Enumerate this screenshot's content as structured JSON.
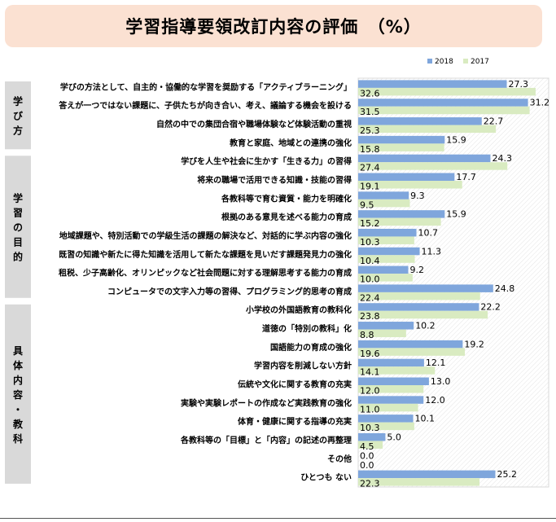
{
  "title": "学習指導要領改訂内容の評価　（%）",
  "chart_data": {
    "type": "bar",
    "orientation": "horizontal",
    "xlim": [
      0,
      35
    ],
    "grid": true,
    "legend_position": "top-right",
    "series": [
      {
        "name": "2018",
        "color": "#7fa6dc",
        "values": [
          27.3,
          31.2,
          22.7,
          15.9,
          24.3,
          17.7,
          9.3,
          15.9,
          10.7,
          11.3,
          9.2,
          24.8,
          22.2,
          10.2,
          19.2,
          12.1,
          13.0,
          12.0,
          10.1,
          5.0,
          0.0,
          25.2
        ]
      },
      {
        "name": "2017",
        "color": "#d9ebc1",
        "values": [
          32.6,
          31.5,
          25.3,
          15.8,
          27.4,
          19.1,
          9.5,
          15.2,
          10.3,
          10.4,
          10.0,
          22.4,
          23.8,
          8.8,
          19.6,
          14.1,
          12.0,
          11.0,
          10.3,
          4.5,
          0.0,
          22.3
        ]
      }
    ],
    "value_labels": [
      [
        "27.3",
        "32.6"
      ],
      [
        "31.2",
        "31.5"
      ],
      [
        "22.7",
        "25.3"
      ],
      [
        "15.9",
        "15.8"
      ],
      [
        "24.3",
        "27.4"
      ],
      [
        "17.7",
        "19.1"
      ],
      [
        "9.3",
        "9.5"
      ],
      [
        "15.9",
        "15.2"
      ],
      [
        "10.7",
        "10.3"
      ],
      [
        "11.3",
        "10.4"
      ],
      [
        "9.2",
        "10.0"
      ],
      [
        "24.8",
        "22.4"
      ],
      [
        "22.2",
        "23.8"
      ],
      [
        "10.2",
        "8.8"
      ],
      [
        "19.2",
        "19.6"
      ],
      [
        "12.1",
        "14.1"
      ],
      [
        "13.0",
        "12.0"
      ],
      [
        "12.0",
        "11.0"
      ],
      [
        "10.1",
        "10.3"
      ],
      [
        "5.0",
        "4.5"
      ],
      [
        "0.0",
        "0.0"
      ],
      [
        "25.2",
        "22.3"
      ]
    ],
    "categories": [
      "学びの方法として、自主的・協働的な学習を奨励する「アクティブラーニング」",
      "答えが一つではない課題に、子供たちが向き合い、考え、議論する機会を設ける",
      "自然の中での集団合宿や職場体験など体験活動の重視",
      "教育と家庭、地域との連携の強化",
      "学びを人生や社会に生かす「生きる力」の習得",
      "将来の職場で活用できる知識・技能の習得",
      "各教科等で育む資質・能力を明確化",
      "根拠のある意見を述べる能力の育成",
      "地域課題や、特別活動での学級生活の課題の解決など、対話的に学ぶ内容の強化",
      "既習の知識や新たに得た知識を活用して新たな課題を見いだす課題発見力の強化",
      "租税、少子高齢化、オリンピックなど社会問題に対する理解思考する能力の育成",
      "コンピュータでの文字入力等の習得、プログラミング的思考の育成",
      "小学校の外国語教育の教科化",
      "道徳の「特別の教科」化",
      "国語能力の育成の強化",
      "学習内容を削減しない方針",
      "伝統や文化に関する教育の充実",
      "実験や実験レポートの作成など実践教育の強化",
      "体育・健康に関する指導の充実",
      "各教科等の「目標」と「内容」の記述の再整理",
      "その他",
      "ひとつも ない"
    ],
    "groups": [
      {
        "label": "学び方",
        "chars": [
          "学",
          "び",
          "方"
        ],
        "from": 0,
        "to": 3
      },
      {
        "label": "学習の目的",
        "chars": [
          "学",
          "習",
          "の",
          "目",
          "的"
        ],
        "from": 4,
        "to": 11
      },
      {
        "label": "具体内容・教科",
        "chars": [
          "具",
          "体",
          "内",
          "容",
          "・",
          "教",
          "科"
        ],
        "from": 12,
        "to": 21
      }
    ]
  }
}
